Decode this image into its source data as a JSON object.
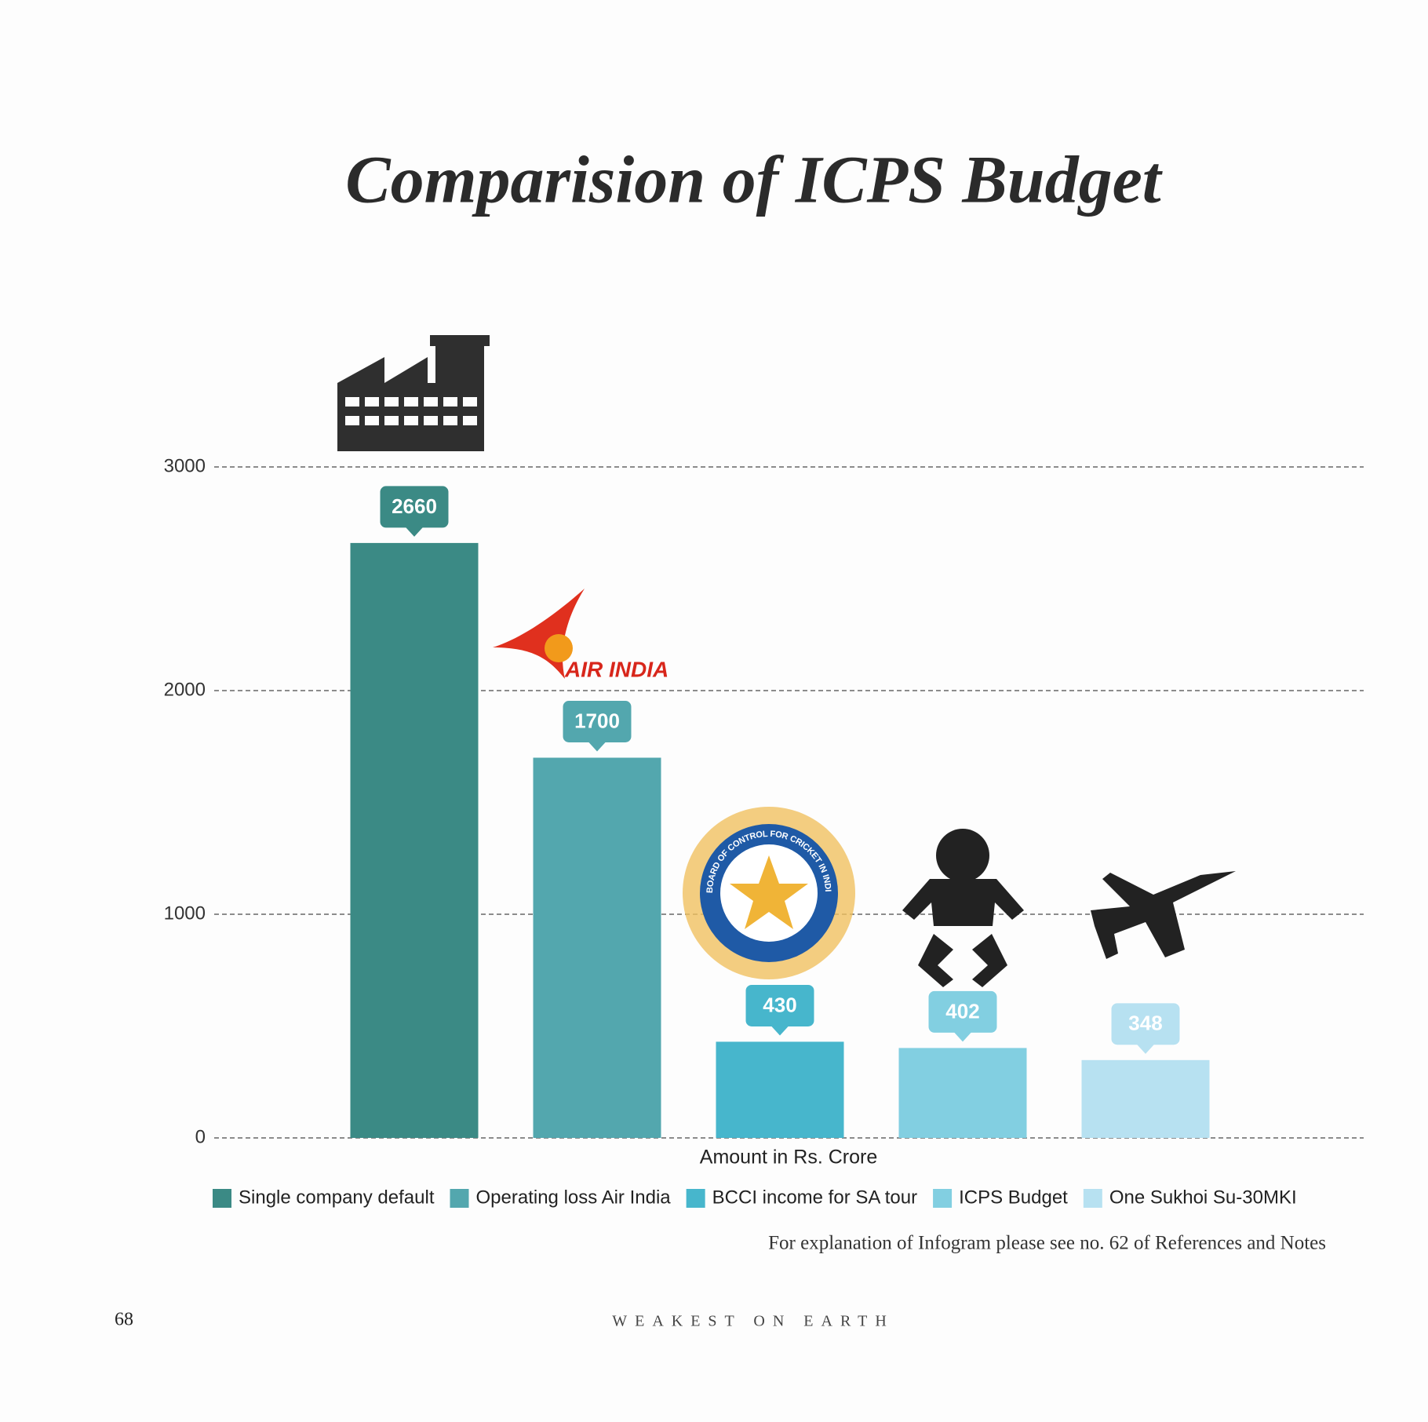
{
  "chart_data": {
    "type": "bar",
    "title": "Comparision of ICPS Budget",
    "x_label": "Amount in Rs. Crore",
    "series": [
      {
        "name": "Single company default",
        "color": "#3b8a85",
        "values": [
          2660
        ]
      },
      {
        "name": "Operating loss Air India",
        "color": "#53a7ae",
        "values": [
          1700
        ]
      },
      {
        "name": "BCCI income for SA tour",
        "color": "#47b6cc",
        "values": [
          430
        ]
      },
      {
        "name": "ICPS Budget",
        "color": "#82cfe1",
        "values": [
          402
        ]
      },
      {
        "name": "One Sukhoi Su-30MKI",
        "color": "#b7e1f1",
        "values": [
          348
        ]
      }
    ],
    "ylim": [
      0,
      3000
    ],
    "yticks": [
      0,
      1000,
      2000,
      3000
    ],
    "grid": true,
    "legend": "bottom",
    "annotations": [
      "AIR INDIA",
      "BOARD OF CONTROL FOR CRICKET IN INDIA"
    ],
    "note": "For explanation of Infogram please see no. 62 of References and Notes"
  },
  "page": {
    "number": "68",
    "running_title": "WEAKEST ON EARTH"
  }
}
